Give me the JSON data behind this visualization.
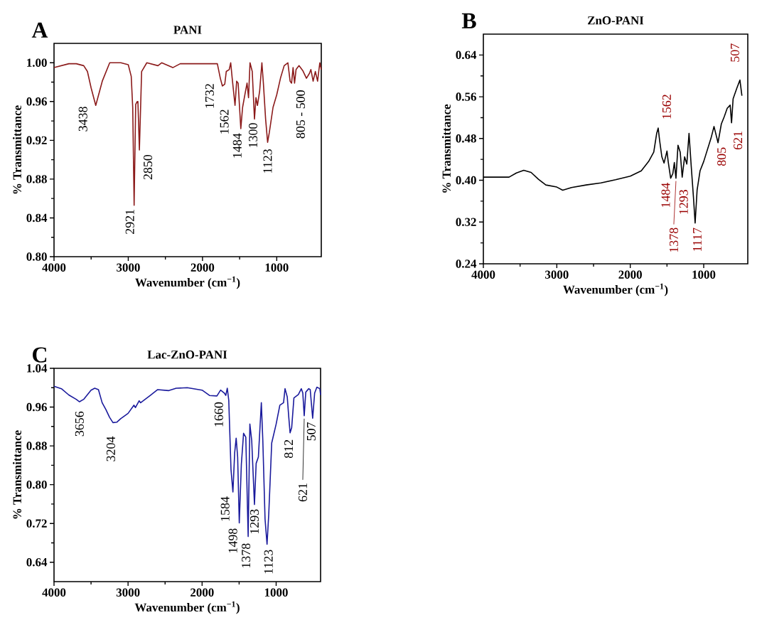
{
  "chart_data": [
    {
      "type": "line",
      "title": "PANI",
      "xlabel": "Wavenumber (cm$^{−1}$)",
      "ylabel": "% Transmittance",
      "xlim": [
        4000,
        400
      ],
      "ylim": [
        0.8,
        1.02
      ],
      "xticks": [
        4000,
        3000,
        2000,
        1000
      ],
      "yticks": [
        {
          "value": 0.8,
          "label": "0.80"
        },
        0.84,
        0.88,
        0.92,
        0.96,
        {
          "value": 1.0,
          "label": "1.00"
        }
      ],
      "x": [
        4000,
        3800,
        3700,
        3600,
        3550,
        3500,
        3438,
        3350,
        3250,
        3100,
        3000,
        2960,
        2940,
        2921,
        2900,
        2880,
        2870,
        2850,
        2820,
        2750,
        2600,
        2550,
        2400,
        2300,
        2000,
        1800,
        1760,
        1732,
        1700,
        1680,
        1640,
        1620,
        1600,
        1562,
        1540,
        1520,
        1484,
        1460,
        1420,
        1400,
        1380,
        1360,
        1330,
        1300,
        1280,
        1260,
        1230,
        1200,
        1180,
        1150,
        1123,
        1100,
        1050,
        1000,
        950,
        900,
        850,
        820,
        800,
        780,
        760,
        740,
        700,
        650,
        600,
        560,
        540,
        510,
        480,
        450,
        420,
        400
      ],
      "series": [
        {
          "color": "#8b1a1a",
          "values": [
            0.995,
            0.999,
            0.999,
            0.997,
            0.991,
            0.974,
            0.956,
            0.981,
            1.0,
            1.0,
            0.998,
            0.986,
            0.954,
            0.853,
            0.957,
            0.96,
            0.96,
            0.91,
            0.991,
            1.0,
            0.997,
            1.0,
            0.995,
            0.999,
            0.999,
            0.999,
            0.984,
            0.976,
            0.978,
            0.991,
            0.993,
            1.0,
            0.984,
            0.956,
            0.981,
            0.979,
            0.932,
            0.954,
            0.971,
            0.979,
            0.964,
            1.0,
            0.991,
            0.942,
            0.964,
            0.956,
            0.971,
            1.0,
            0.979,
            0.942,
            0.918,
            0.928,
            0.954,
            0.967,
            0.984,
            0.997,
            1.0,
            0.981,
            0.979,
            0.995,
            0.979,
            0.993,
            0.997,
            0.992,
            0.984,
            0.989,
            0.993,
            0.981,
            0.991,
            0.981,
            1.0,
            0.993
          ]
        }
      ],
      "annotations": [
        "A",
        {
          "text": "3438",
          "x": 3438,
          "y": 0.956
        },
        {
          "text": "2921",
          "x": 2921,
          "y": 0.853
        },
        {
          "text": "2850",
          "x": 2850,
          "y": 0.91
        },
        {
          "text": "1732",
          "x": 1732,
          "y": 0.976
        },
        {
          "text": "1562",
          "x": 1562,
          "y": 0.956
        },
        {
          "text": "1484",
          "x": 1484,
          "y": 0.932
        },
        {
          "text": "1300",
          "x": 1300,
          "y": 0.942
        },
        {
          "text": "1123",
          "x": 1123,
          "y": 0.918
        },
        {
          "text": "805 - 500",
          "x": 650,
          "y": 0.992
        }
      ]
    },
    {
      "type": "line",
      "title": "ZnO-PANI",
      "xlabel": "Wavenumber (cm$^{−1}$)",
      "ylabel": "% Transmittance",
      "xlim": [
        4000,
        400
      ],
      "ylim": [
        0.24,
        0.68
      ],
      "xticks": [
        4000,
        3000,
        2000,
        1000
      ],
      "yticks": [
        0.24,
        0.32,
        {
          "value": 0.4,
          "label": "0.40"
        },
        0.48,
        0.56,
        0.64
      ],
      "x": [
        4000,
        3800,
        3650,
        3550,
        3450,
        3350,
        3250,
        3150,
        3000,
        2920,
        2800,
        2600,
        2400,
        2200,
        2000,
        1850,
        1750,
        1680,
        1640,
        1620,
        1600,
        1570,
        1540,
        1500,
        1484,
        1450,
        1420,
        1400,
        1378,
        1350,
        1320,
        1293,
        1260,
        1230,
        1200,
        1170,
        1140,
        1117,
        1090,
        1050,
        1000,
        900,
        860,
        830,
        805,
        760,
        720,
        680,
        640,
        621,
        600,
        550,
        507,
        480
      ],
      "series": [
        {
          "color": "#000000",
          "values": [
            0.406,
            0.406,
            0.406,
            0.414,
            0.419,
            0.415,
            0.402,
            0.391,
            0.387,
            0.381,
            0.386,
            0.391,
            0.395,
            0.401,
            0.408,
            0.418,
            0.436,
            0.454,
            0.49,
            0.5,
            0.476,
            0.445,
            0.433,
            0.456,
            0.436,
            0.404,
            0.413,
            0.434,
            0.404,
            0.467,
            0.454,
            0.406,
            0.445,
            0.431,
            0.49,
            0.427,
            0.368,
            0.318,
            0.381,
            0.418,
            0.436,
            0.481,
            0.503,
            0.486,
            0.472,
            0.508,
            0.522,
            0.538,
            0.544,
            0.51,
            0.556,
            0.576,
            0.592,
            0.562
          ]
        }
      ],
      "annotations": [
        "B",
        {
          "text": "1562",
          "x": 1620,
          "y": 0.5
        },
        {
          "text": "1484",
          "x": 1450,
          "y": 0.404
        },
        {
          "text": "1378",
          "x": 1378,
          "y": 0.404
        },
        {
          "text": "1293",
          "x": 1293,
          "y": 0.406
        },
        {
          "text": "1117",
          "x": 1117,
          "y": 0.318
        },
        {
          "text": "805",
          "x": 805,
          "y": 0.472
        },
        {
          "text": "621",
          "x": 621,
          "y": 0.51
        },
        {
          "text": "507",
          "x": 507,
          "y": 0.592
        }
      ]
    },
    {
      "type": "line",
      "title": "Lac-ZnO-PANI",
      "xlabel": "Wavenumber (cm$^{−1}$)",
      "ylabel": "% Transmittance",
      "xlim": [
        4000,
        400
      ],
      "ylim": [
        0.6,
        1.04
      ],
      "xticks": [
        4000,
        3000,
        2000,
        1000
      ],
      "yticks": [
        0.64,
        0.72,
        {
          "value": 0.8,
          "label": "0.80"
        },
        0.88,
        0.96,
        1.04
      ],
      "x": [
        4000,
        3900,
        3800,
        3700,
        3656,
        3600,
        3500,
        3450,
        3400,
        3350,
        3300,
        3250,
        3204,
        3150,
        3100,
        3000,
        2920,
        2900,
        2850,
        2830,
        2700,
        2600,
        2450,
        2350,
        2200,
        2000,
        1900,
        1800,
        1750,
        1700,
        1680,
        1660,
        1640,
        1610,
        1584,
        1560,
        1540,
        1520,
        1498,
        1470,
        1440,
        1410,
        1378,
        1355,
        1330,
        1293,
        1270,
        1240,
        1200,
        1180,
        1150,
        1123,
        1100,
        1060,
        1000,
        950,
        900,
        880,
        850,
        830,
        812,
        790,
        760,
        700,
        660,
        640,
        621,
        600,
        560,
        540,
        507,
        480,
        450,
        410,
        400
      ],
      "series": [
        {
          "color": "#1a1a9c",
          "values": [
            1.003,
            0.998,
            0.985,
            0.976,
            0.971,
            0.976,
            0.995,
            0.999,
            0.996,
            0.969,
            0.955,
            0.939,
            0.928,
            0.929,
            0.936,
            0.947,
            0.964,
            0.959,
            0.973,
            0.969,
            0.984,
            0.996,
            0.994,
            0.999,
            1.0,
            0.995,
            0.984,
            0.983,
            0.995,
            0.989,
            0.984,
            0.999,
            0.974,
            0.832,
            0.785,
            0.866,
            0.896,
            0.857,
            0.721,
            0.842,
            0.906,
            0.898,
            0.693,
            0.925,
            0.891,
            0.759,
            0.844,
            0.857,
            0.969,
            0.891,
            0.729,
            0.677,
            0.739,
            0.886,
            0.925,
            0.964,
            0.969,
            0.998,
            0.981,
            0.94,
            0.907,
            0.918,
            0.979,
            0.986,
            0.998,
            0.989,
            0.942,
            0.991,
            0.998,
            0.996,
            0.937,
            0.989,
            1.001,
            0.998,
            0.985
          ]
        }
      ],
      "annotations": [
        "C",
        {
          "text": "3656",
          "x": 3656,
          "y": 0.971
        },
        {
          "text": "3204",
          "x": 3204,
          "y": 0.928
        },
        {
          "text": "1660",
          "x": 1660,
          "y": 0.999
        },
        {
          "text": "1584",
          "x": 1584,
          "y": 0.785
        },
        {
          "text": "1498",
          "x": 1498,
          "y": 0.721
        },
        {
          "text": "1378",
          "x": 1378,
          "y": 0.693
        },
        {
          "text": "1293",
          "x": 1293,
          "y": 0.759
        },
        {
          "text": "1123",
          "x": 1123,
          "y": 0.677
        },
        {
          "text": "812",
          "x": 812,
          "y": 0.907
        },
        {
          "text": "621",
          "x": 621,
          "y": 0.942
        },
        {
          "text": "507",
          "x": 507,
          "y": 0.937
        }
      ]
    }
  ]
}
